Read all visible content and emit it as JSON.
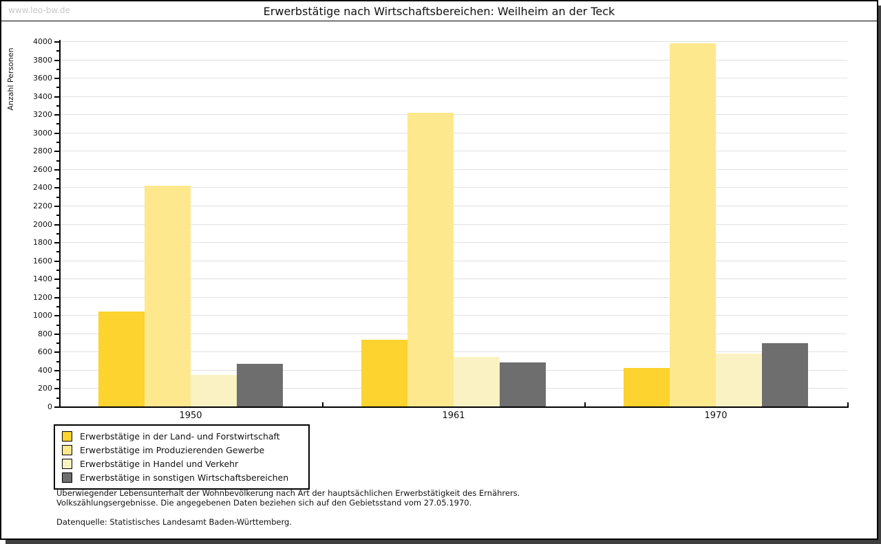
{
  "watermark": "www.leo-bw.de",
  "header": {
    "title": "Erwerbstätige nach Wirtschaftsbereichen: Weilheim an der Teck"
  },
  "chart_data": {
    "type": "bar",
    "title": "Erwerbstätige nach Wirtschaftsbereichen: Weilheim an der Teck",
    "xlabel": "",
    "ylabel": "Anzahl Personen",
    "categories": [
      "1950",
      "1961",
      "1970"
    ],
    "series": [
      {
        "name": "Erwerbstätige in der Land- und Forstwirtschaft",
        "color": "#fcd32f",
        "values": [
          1040,
          730,
          420
        ]
      },
      {
        "name": "Erwerbstätige im Produzierenden Gewerbe",
        "color": "#fde88d",
        "values": [
          2420,
          3220,
          3980
        ]
      },
      {
        "name": "Erwerbstätige in Handel und Verkehr",
        "color": "#fbf2c4",
        "values": [
          350,
          540,
          580
        ]
      },
      {
        "name": "Erwerbstätige in sonstigen Wirtschaftsbereichen",
        "color": "#6e6e6e",
        "values": [
          470,
          480,
          690
        ]
      }
    ],
    "ylim": [
      0,
      4000
    ],
    "y_major_step": 200,
    "y_minor_step": 100,
    "grid": true,
    "legend_position": "bottom-left"
  },
  "footer": {
    "line1": "Überwiegender Lebensunterhalt der Wohnbevölkerung nach Art der hauptsächlichen Erwerbstätigkeit des Ernährers.",
    "line2": "Volkszählungsergebnisse. Die angegebenen Daten beziehen sich auf den Gebietsstand vom 27.05.1970.",
    "source": "Datenquelle: Statistisches Landesamt Baden-Württemberg."
  },
  "colors": {
    "grid": "#e0e0e0",
    "axis": "#000000",
    "watermark": "#c8c8c8",
    "shadow": "#3f3f3f"
  }
}
